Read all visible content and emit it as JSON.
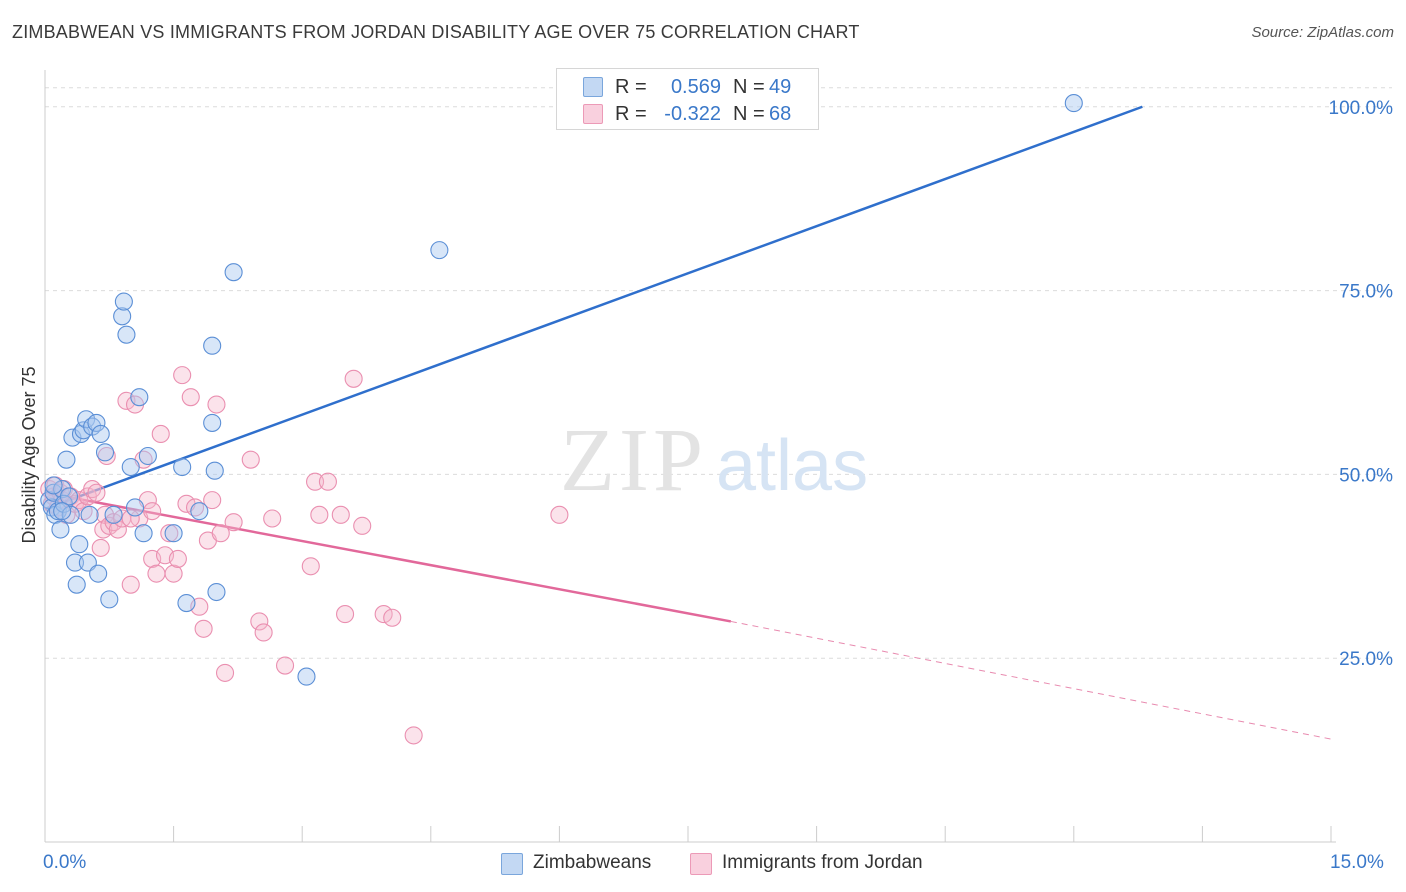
{
  "header": {
    "title": "ZIMBABWEAN VS IMMIGRANTS FROM JORDAN DISABILITY AGE OVER 75 CORRELATION CHART",
    "source": "Source: ZipAtlas.com"
  },
  "legend_stats": [
    {
      "r_label": "R =",
      "r_value": "0.569",
      "n_label": "N =",
      "n_value": "49"
    },
    {
      "r_label": "R =",
      "r_value": "-0.322",
      "n_label": "N =",
      "n_value": "68"
    }
  ],
  "watermark": {
    "zip": "ZIP",
    "atlas": "atlas"
  },
  "colors": {
    "blue": "#3a78c9",
    "blue_fill": "#a8c8f0",
    "pink": "#e86b98",
    "pink_fill": "#f6b8cc",
    "grid": "#dcdcdc",
    "tick_text": "#3a78c9"
  },
  "chart_data": {
    "type": "scatter",
    "title": "ZIMBABWEAN VS IMMIGRANTS FROM JORDAN DISABILITY AGE OVER 75 CORRELATION CHART",
    "xlabel": "",
    "ylabel": "Disability Age Over 75",
    "xlim": [
      0,
      15
    ],
    "ylim": [
      0,
      105
    ],
    "x_tick_labels": [
      "0.0%",
      "15.0%"
    ],
    "y_ticks": [
      25,
      50,
      75,
      100
    ],
    "y_tick_labels": [
      "25.0%",
      "50.0%",
      "75.0%",
      "100.0%"
    ],
    "grid": true,
    "legend_position": "bottom",
    "series": [
      {
        "name": "Zimbabweans",
        "color": "#3a78c9",
        "r": 0.569,
        "n": 49,
        "trend": {
          "x": [
            0,
            12.8
          ],
          "y": [
            45.3,
            100.0
          ]
        },
        "points": [
          [
            0.05,
            46.5
          ],
          [
            0.08,
            45.5
          ],
          [
            0.1,
            47.5
          ],
          [
            0.12,
            44.5
          ],
          [
            0.15,
            45.0
          ],
          [
            0.18,
            42.5
          ],
          [
            0.2,
            48.0
          ],
          [
            0.22,
            46.0
          ],
          [
            0.25,
            52.0
          ],
          [
            0.28,
            47.0
          ],
          [
            0.3,
            44.5
          ],
          [
            0.32,
            55.0
          ],
          [
            0.35,
            38.0
          ],
          [
            0.37,
            35.0
          ],
          [
            0.4,
            40.5
          ],
          [
            0.42,
            55.5
          ],
          [
            0.45,
            56.0
          ],
          [
            0.48,
            57.5
          ],
          [
            0.5,
            38.0
          ],
          [
            0.52,
            44.5
          ],
          [
            0.55,
            56.5
          ],
          [
            0.6,
            57.0
          ],
          [
            0.62,
            36.5
          ],
          [
            0.65,
            55.5
          ],
          [
            0.7,
            53.0
          ],
          [
            0.75,
            33.0
          ],
          [
            0.8,
            44.5
          ],
          [
            0.9,
            71.5
          ],
          [
            0.92,
            73.5
          ],
          [
            0.95,
            69.0
          ],
          [
            1.0,
            51.0
          ],
          [
            1.05,
            45.5
          ],
          [
            1.1,
            60.5
          ],
          [
            1.15,
            42.0
          ],
          [
            1.2,
            52.5
          ],
          [
            1.5,
            42.0
          ],
          [
            1.6,
            51.0
          ],
          [
            1.65,
            32.5
          ],
          [
            1.8,
            45.0
          ],
          [
            1.95,
            57.0
          ],
          [
            1.95,
            67.5
          ],
          [
            1.98,
            50.5
          ],
          [
            2.0,
            34.0
          ],
          [
            2.2,
            77.5
          ],
          [
            3.05,
            22.5
          ],
          [
            4.6,
            80.5
          ],
          [
            12.0,
            100.5
          ],
          [
            0.1,
            48.5
          ],
          [
            0.2,
            45.0
          ]
        ]
      },
      {
        "name": "Immigrants from Jordan",
        "color": "#e86b98",
        "r": -0.322,
        "n": 68,
        "trend": {
          "x": [
            0,
            8.0
          ],
          "y": [
            47.5,
            30.0
          ]
        },
        "trend_dashed": {
          "x": [
            8.0,
            15.0
          ],
          "y": [
            30.0,
            14.0
          ]
        },
        "points": [
          [
            0.05,
            48.0
          ],
          [
            0.08,
            46.0
          ],
          [
            0.1,
            47.0
          ],
          [
            0.12,
            48.5
          ],
          [
            0.15,
            45.5
          ],
          [
            0.18,
            47.5
          ],
          [
            0.2,
            46.5
          ],
          [
            0.22,
            48.0
          ],
          [
            0.25,
            44.5
          ],
          [
            0.3,
            47.0
          ],
          [
            0.35,
            46.0
          ],
          [
            0.4,
            46.5
          ],
          [
            0.45,
            45.0
          ],
          [
            0.5,
            47.0
          ],
          [
            0.55,
            48.0
          ],
          [
            0.6,
            47.5
          ],
          [
            0.65,
            40.0
          ],
          [
            0.68,
            42.5
          ],
          [
            0.7,
            44.5
          ],
          [
            0.72,
            52.5
          ],
          [
            0.75,
            43.0
          ],
          [
            0.8,
            43.5
          ],
          [
            0.85,
            42.5
          ],
          [
            0.9,
            44.0
          ],
          [
            0.95,
            60.0
          ],
          [
            1.0,
            35.0
          ],
          [
            1.05,
            59.5
          ],
          [
            1.1,
            44.0
          ],
          [
            1.15,
            52.0
          ],
          [
            1.2,
            46.5
          ],
          [
            1.25,
            38.5
          ],
          [
            1.3,
            36.5
          ],
          [
            1.35,
            55.5
          ],
          [
            1.4,
            39.0
          ],
          [
            1.45,
            42.0
          ],
          [
            1.5,
            36.5
          ],
          [
            1.55,
            38.5
          ],
          [
            1.6,
            63.5
          ],
          [
            1.65,
            46.0
          ],
          [
            1.7,
            60.5
          ],
          [
            1.75,
            45.5
          ],
          [
            1.8,
            32.0
          ],
          [
            1.85,
            29.0
          ],
          [
            1.9,
            41.0
          ],
          [
            1.95,
            46.5
          ],
          [
            2.0,
            59.5
          ],
          [
            2.05,
            42.0
          ],
          [
            2.1,
            23.0
          ],
          [
            2.2,
            43.5
          ],
          [
            2.4,
            52.0
          ],
          [
            2.5,
            30.0
          ],
          [
            2.55,
            28.5
          ],
          [
            2.65,
            44.0
          ],
          [
            2.8,
            24.0
          ],
          [
            3.1,
            37.5
          ],
          [
            3.15,
            49.0
          ],
          [
            3.2,
            44.5
          ],
          [
            3.3,
            49.0
          ],
          [
            3.45,
            44.5
          ],
          [
            3.5,
            31.0
          ],
          [
            3.6,
            63.0
          ],
          [
            3.7,
            43.0
          ],
          [
            3.95,
            31.0
          ],
          [
            4.05,
            30.5
          ],
          [
            4.3,
            14.5
          ],
          [
            6.0,
            44.5
          ],
          [
            1.0,
            44.0
          ],
          [
            1.25,
            45.0
          ]
        ]
      }
    ]
  },
  "watermark_note": ""
}
